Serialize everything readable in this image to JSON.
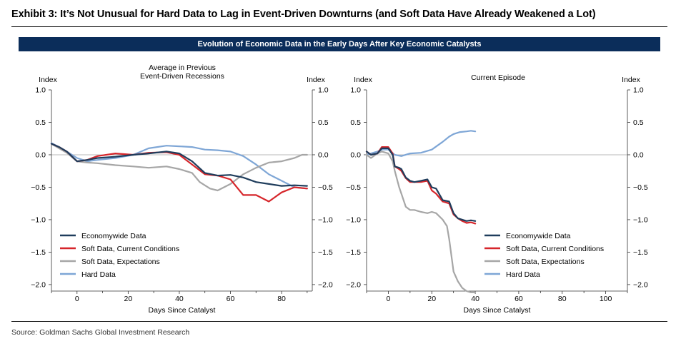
{
  "title": "Exhibit 3: It’s Not Unusual for Hard Data to Lag in Event-Driven Downturns (and Soft Data Have Already Weakened a Lot)",
  "banner": "Evolution of Economic Data in the Early Days After Key Economic Catalysts",
  "source": "Source: Goldman Sachs Global Investment Research",
  "colors": {
    "economywide": "#1f3d5c",
    "soft_current": "#d6262b",
    "soft_expect": "#a6a6a6",
    "hard": "#7ea6d6",
    "banner": "#0b2d5a"
  },
  "chart_data": [
    {
      "type": "line",
      "title": "Average in Previous Event-Driven Recessions",
      "title_lines": [
        "Average in Previous",
        "Event-Driven Recessions"
      ],
      "xlabel": "Days Since Catalyst",
      "ylabel_left": "Index",
      "ylabel_right": "Index",
      "xlim": [
        -10,
        92
      ],
      "ylim": [
        -2.1,
        1.0
      ],
      "xticks": [
        0,
        20,
        40,
        60,
        80
      ],
      "yticks": [
        1.0,
        0.5,
        0.0,
        -0.5,
        -1.0,
        -1.5,
        -2.0
      ],
      "ytick_labels": [
        "1.0",
        "0.5",
        "0.0",
        "-0.5",
        "-1.0",
        "-1.5",
        "-2.0"
      ],
      "legend_position": "bottom-left",
      "series": [
        {
          "name": "Economywide Data",
          "color": "#1f3d5c",
          "x": [
            -10,
            -7,
            -4,
            0,
            4,
            8,
            15,
            22,
            28,
            35,
            40,
            45,
            50,
            55,
            60,
            65,
            70,
            75,
            80,
            85,
            90
          ],
          "y": [
            0.17,
            0.12,
            0.05,
            -0.1,
            -0.08,
            -0.05,
            -0.03,
            0.0,
            0.02,
            0.05,
            0.02,
            -0.1,
            -0.28,
            -0.32,
            -0.31,
            -0.35,
            -0.42,
            -0.45,
            -0.48,
            -0.47,
            -0.48
          ]
        },
        {
          "name": "Soft Data, Current Conditions",
          "color": "#d6262b",
          "x": [
            -10,
            -7,
            -4,
            0,
            4,
            8,
            15,
            22,
            28,
            35,
            40,
            45,
            50,
            55,
            60,
            65,
            70,
            75,
            80,
            85,
            90
          ],
          "y": [
            0.17,
            0.12,
            0.05,
            -0.1,
            -0.08,
            -0.02,
            0.02,
            0.0,
            0.03,
            0.04,
            0.0,
            -0.15,
            -0.3,
            -0.32,
            -0.38,
            -0.62,
            -0.62,
            -0.72,
            -0.58,
            -0.5,
            -0.52
          ]
        },
        {
          "name": "Soft Data, Expectations",
          "color": "#a6a6a6",
          "x": [
            -10,
            -7,
            -4,
            0,
            4,
            8,
            15,
            22,
            28,
            35,
            40,
            45,
            48,
            52,
            55,
            60,
            65,
            70,
            75,
            80,
            85,
            88,
            90
          ],
          "y": [
            0.17,
            0.1,
            0.03,
            -0.1,
            -0.12,
            -0.13,
            -0.16,
            -0.18,
            -0.2,
            -0.18,
            -0.22,
            -0.28,
            -0.42,
            -0.52,
            -0.55,
            -0.45,
            -0.3,
            -0.2,
            -0.12,
            -0.1,
            -0.05,
            0.0,
            0.0
          ]
        },
        {
          "name": "Hard Data",
          "color": "#7ea6d6",
          "x": [
            -10,
            -7,
            -4,
            0,
            4,
            8,
            15,
            22,
            28,
            35,
            40,
            45,
            50,
            55,
            60,
            65,
            70,
            75,
            80,
            85,
            90
          ],
          "y": [
            0.18,
            0.12,
            0.05,
            -0.05,
            -0.1,
            -0.08,
            -0.05,
            0.0,
            0.1,
            0.14,
            0.13,
            0.12,
            0.08,
            0.07,
            0.05,
            -0.02,
            -0.15,
            -0.3,
            -0.4,
            -0.5,
            -0.52
          ]
        }
      ]
    },
    {
      "type": "line",
      "title": "Current Episode",
      "title_lines": [
        "Current Episode"
      ],
      "xlabel": "Days Since Catalyst",
      "ylabel_left": "Index",
      "ylabel_right": "Index",
      "xlim": [
        -10,
        110
      ],
      "ylim": [
        -2.1,
        1.0
      ],
      "xticks": [
        0,
        20,
        40,
        60,
        80,
        100
      ],
      "yticks": [
        1.0,
        0.5,
        0.0,
        -0.5,
        -1.0,
        -1.5,
        -2.0
      ],
      "ytick_labels": [
        "1.0",
        "0.5",
        "0.0",
        "-0.5",
        "-1.0",
        "-1.5",
        "-2.0"
      ],
      "legend_position": "bottom-right",
      "series": [
        {
          "name": "Economywide Data",
          "color": "#1f3d5c",
          "x": [
            -10,
            -8,
            -5,
            -3,
            0,
            2,
            3,
            5,
            6,
            8,
            10,
            12,
            15,
            18,
            20,
            22,
            25,
            28,
            30,
            32,
            34,
            36,
            38,
            40
          ],
          "y": [
            0.05,
            0.0,
            0.02,
            0.1,
            0.1,
            0.0,
            -0.18,
            -0.2,
            -0.22,
            -0.35,
            -0.4,
            -0.42,
            -0.4,
            -0.38,
            -0.5,
            -0.52,
            -0.7,
            -0.72,
            -0.9,
            -0.98,
            -1.0,
            -1.02,
            -1.01,
            -1.02
          ]
        },
        {
          "name": "Soft Data, Current Conditions",
          "color": "#d6262b",
          "x": [
            -10,
            -8,
            -5,
            -3,
            0,
            2,
            3,
            5,
            6,
            8,
            10,
            12,
            15,
            18,
            20,
            22,
            25,
            28,
            30,
            32,
            34,
            36,
            38,
            40
          ],
          "y": [
            0.05,
            0.0,
            0.02,
            0.12,
            0.12,
            0.02,
            -0.18,
            -0.22,
            -0.25,
            -0.36,
            -0.42,
            -0.42,
            -0.42,
            -0.4,
            -0.55,
            -0.6,
            -0.72,
            -0.75,
            -0.92,
            -0.98,
            -1.02,
            -1.05,
            -1.04,
            -1.06
          ]
        },
        {
          "name": "Soft Data, Expectations",
          "color": "#a6a6a6",
          "x": [
            -10,
            -8,
            -5,
            -3,
            0,
            2,
            3,
            5,
            6,
            8,
            10,
            12,
            15,
            18,
            20,
            22,
            25,
            27,
            28,
            30,
            32,
            34,
            36,
            38,
            40
          ],
          "y": [
            0.0,
            -0.05,
            0.02,
            0.05,
            0.02,
            -0.1,
            -0.25,
            -0.5,
            -0.6,
            -0.8,
            -0.85,
            -0.85,
            -0.88,
            -0.9,
            -0.88,
            -0.9,
            -1.0,
            -1.1,
            -1.3,
            -1.8,
            -1.95,
            -2.05,
            -2.1,
            -2.12,
            -2.12
          ]
        },
        {
          "name": "Hard Data",
          "color": "#7ea6d6",
          "x": [
            -10,
            -8,
            -5,
            -3,
            0,
            3,
            6,
            10,
            15,
            20,
            25,
            28,
            30,
            33,
            36,
            38,
            40
          ],
          "y": [
            0.0,
            0.02,
            0.05,
            0.08,
            0.08,
            0.0,
            -0.02,
            0.02,
            0.03,
            0.08,
            0.2,
            0.28,
            0.32,
            0.35,
            0.36,
            0.37,
            0.36
          ]
        }
      ]
    }
  ]
}
